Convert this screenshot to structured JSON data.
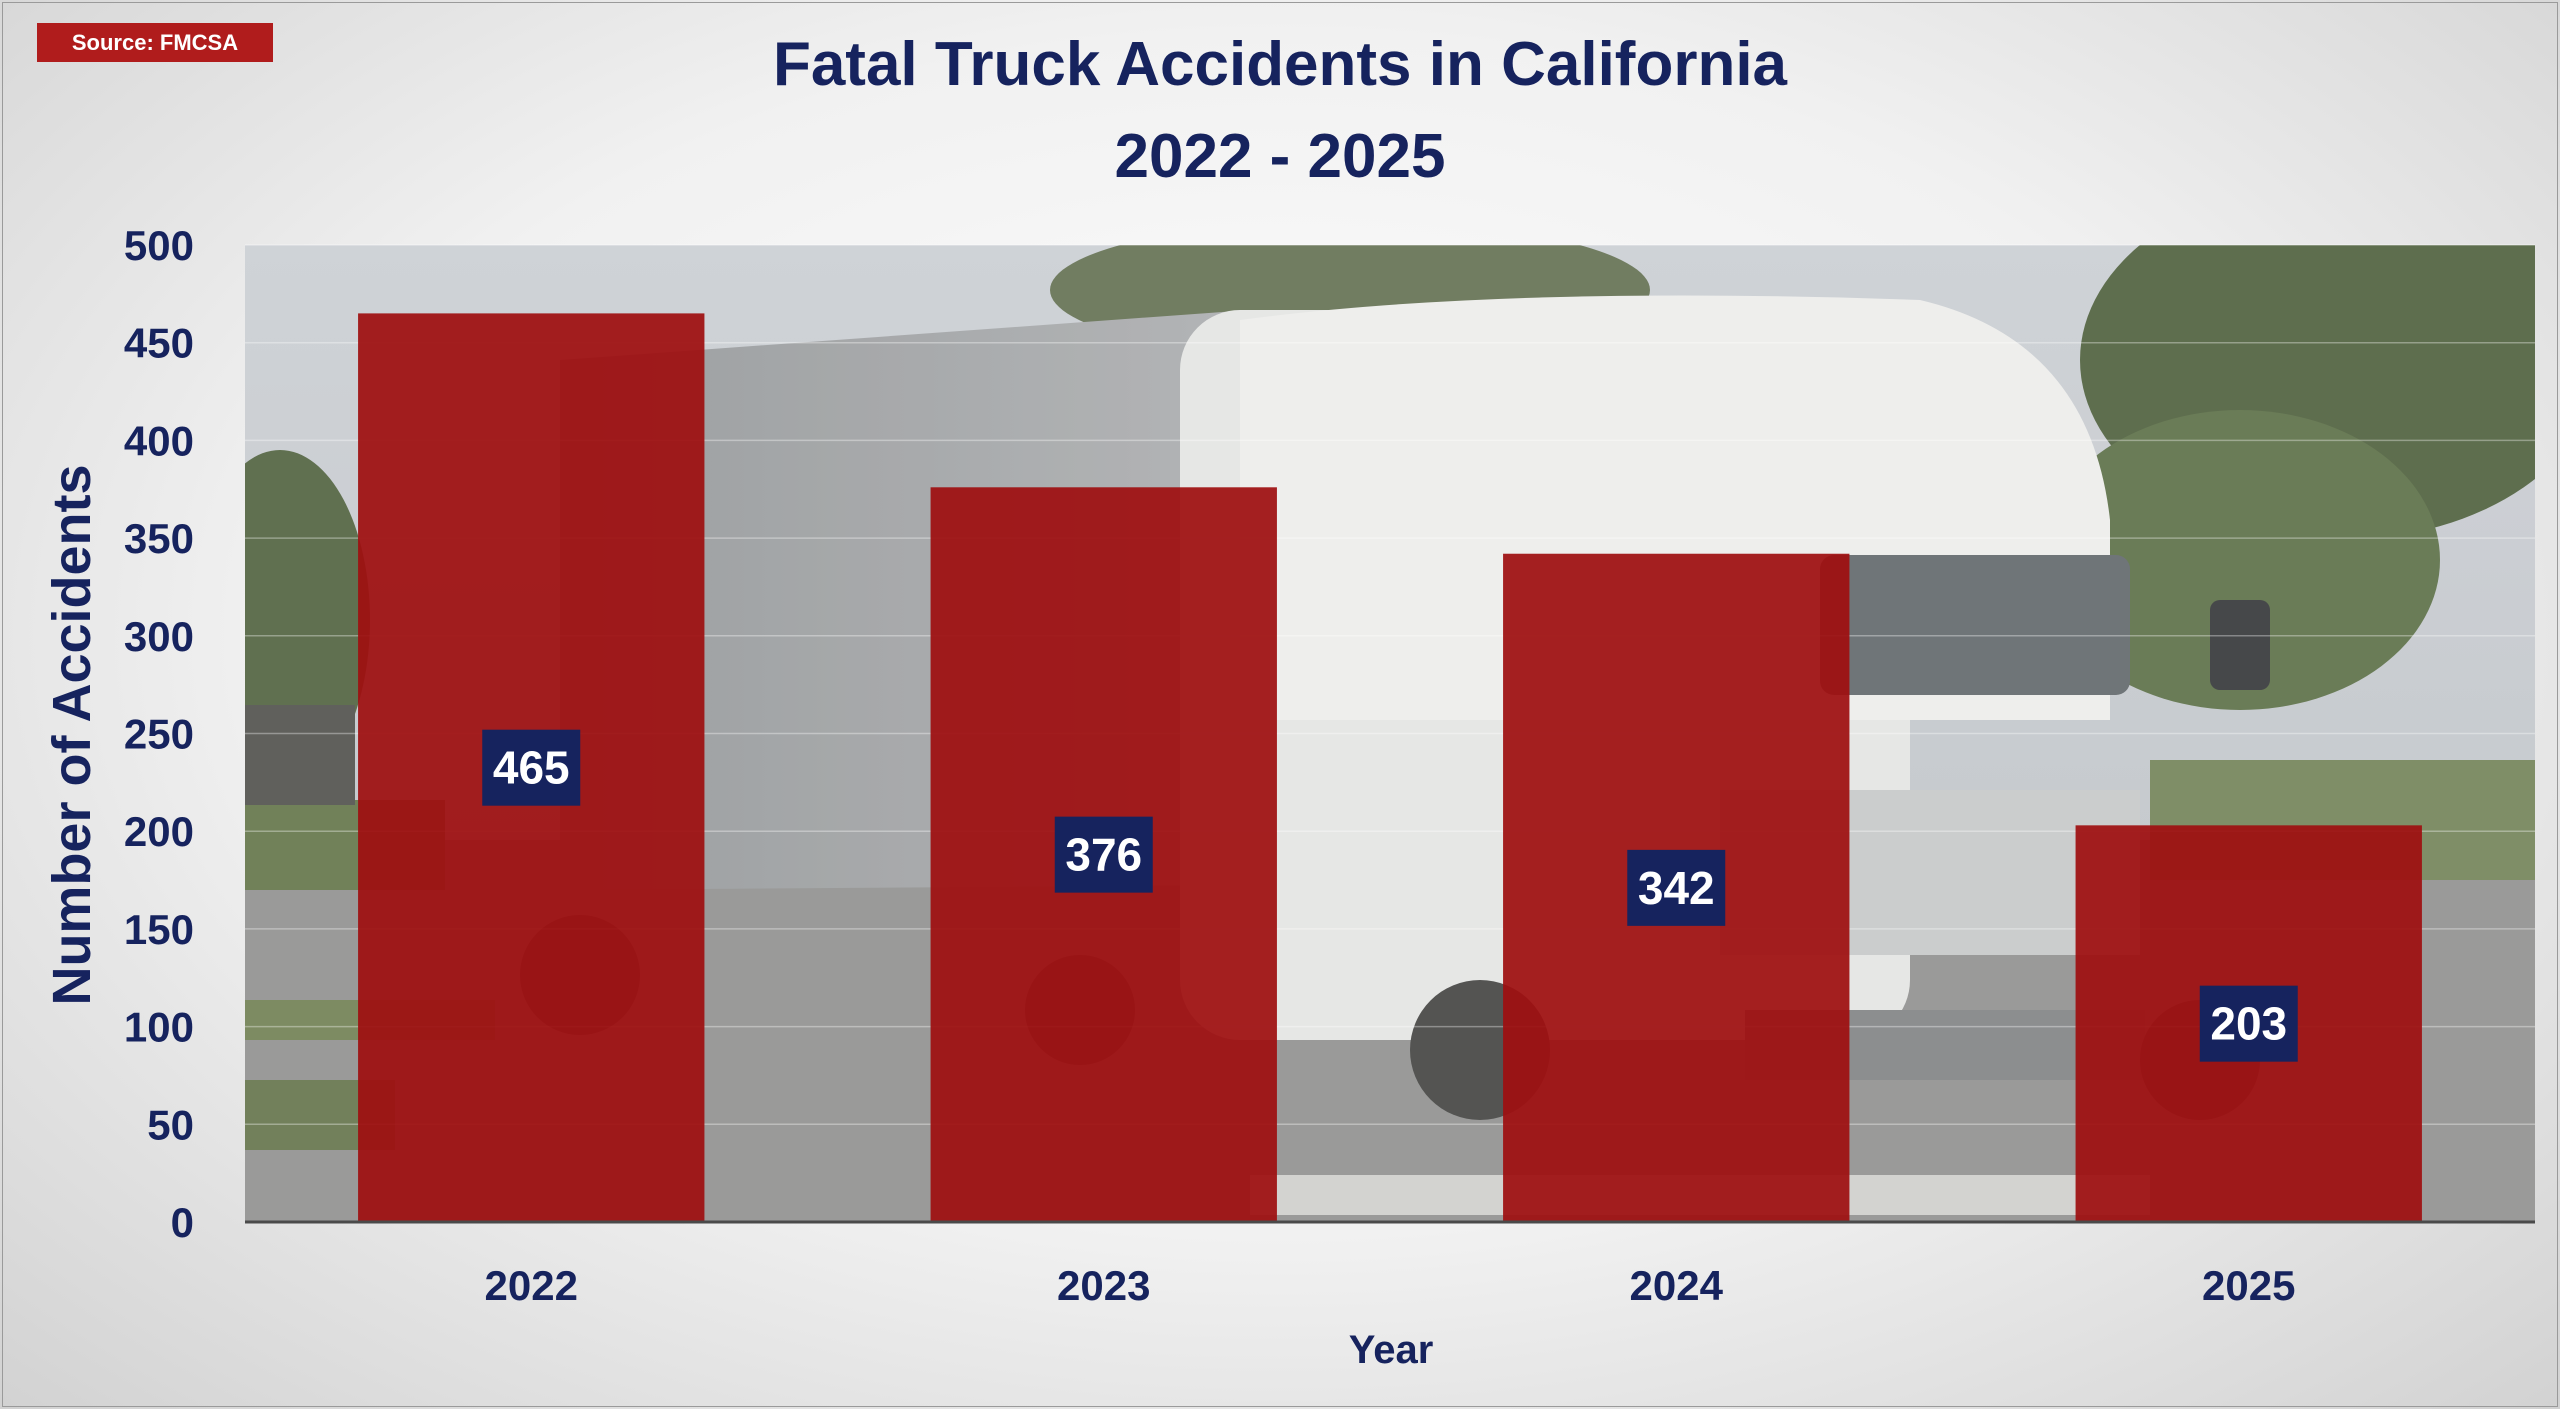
{
  "badge": {
    "source": "Source: FMCSA"
  },
  "chart_data": {
    "type": "bar",
    "title": "Fatal Truck Accidents in California",
    "subtitle": "2022 - 2025",
    "xlabel": "Year",
    "ylabel": "Number of Accidents",
    "categories": [
      "2022",
      "2023",
      "2024",
      "2025"
    ],
    "values": [
      465,
      376,
      342,
      203
    ],
    "ylim": [
      0,
      500
    ],
    "yticks": [
      0,
      50,
      100,
      150,
      200,
      250,
      300,
      350,
      400,
      450,
      500
    ],
    "grid": true,
    "legend": "none"
  },
  "colors": {
    "bar": "#9e0f10",
    "label_box": "#16235e",
    "label_text": "#ffffff",
    "axis_text": "#16235e",
    "badge": "#b01c1c"
  },
  "background_image": "semi-truck-photo"
}
